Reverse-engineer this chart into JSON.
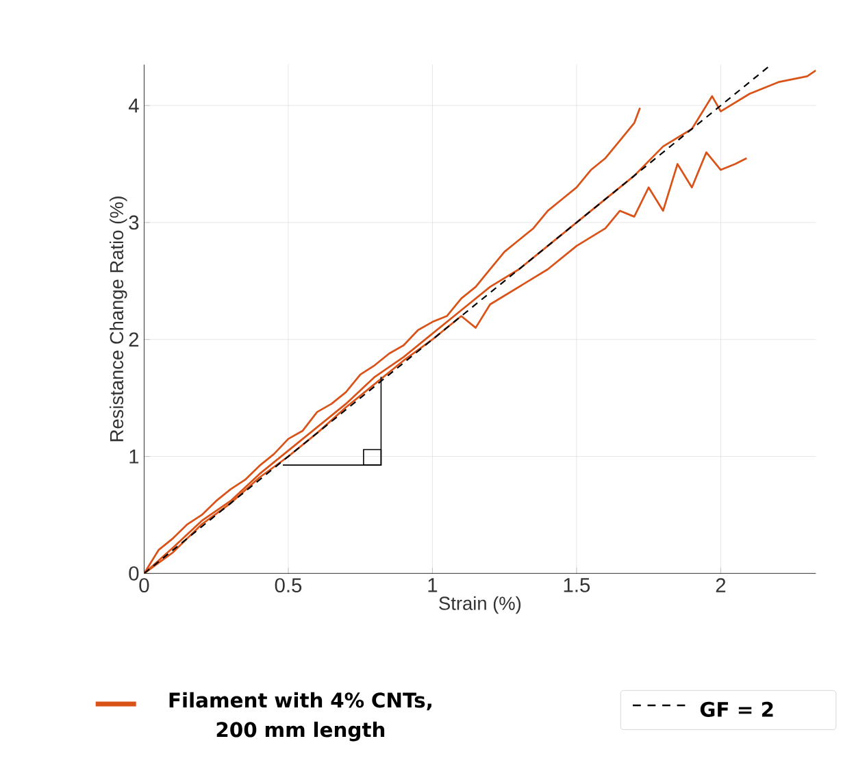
{
  "chart_data": {
    "type": "line",
    "xlabel": "Strain (%)",
    "ylabel": "Resistance Change Ratio (%)",
    "xlim": [
      0,
      2.33
    ],
    "ylim": [
      0,
      4.35
    ],
    "xticks": [
      0,
      0.5,
      1,
      1.5,
      2
    ],
    "yticks": [
      0,
      1,
      2,
      3,
      4
    ],
    "grid": true,
    "legend": "bottom",
    "series": [
      {
        "name": "Filament with 4% CNTs,\n200 mm length",
        "color": "#d95319",
        "x": [
          0,
          0.05,
          0.1,
          0.15,
          0.2,
          0.25,
          0.3,
          0.35,
          0.4,
          0.45,
          0.5,
          0.55,
          0.6,
          0.65,
          0.7,
          0.75,
          0.8,
          0.85,
          0.9,
          0.95,
          1.0,
          1.05,
          1.1,
          1.15,
          1.2,
          1.25,
          1.3,
          1.35,
          1.4,
          1.45,
          1.5,
          1.55,
          1.6,
          1.65,
          1.7,
          1.72
        ],
        "values": [
          0,
          0.2,
          0.3,
          0.42,
          0.5,
          0.62,
          0.72,
          0.8,
          0.92,
          1.02,
          1.15,
          1.22,
          1.38,
          1.45,
          1.55,
          1.7,
          1.78,
          1.88,
          1.95,
          2.08,
          2.15,
          2.2,
          2.35,
          2.45,
          2.6,
          2.75,
          2.85,
          2.95,
          3.1,
          3.2,
          3.3,
          3.45,
          3.55,
          3.7,
          3.85,
          3.98
        ]
      },
      {
        "color": "#d95319",
        "x": [
          0,
          0.1,
          0.2,
          0.3,
          0.4,
          0.5,
          0.6,
          0.7,
          0.8,
          0.9,
          1.0,
          1.1,
          1.2,
          1.3,
          1.4,
          1.5,
          1.6,
          1.7,
          1.8,
          1.9,
          1.97,
          2.0,
          2.1,
          2.2,
          2.3,
          2.33
        ],
        "values": [
          0,
          0.22,
          0.45,
          0.62,
          0.85,
          1.05,
          1.25,
          1.45,
          1.68,
          1.85,
          2.05,
          2.25,
          2.45,
          2.6,
          2.8,
          3.0,
          3.2,
          3.4,
          3.65,
          3.8,
          4.08,
          3.95,
          4.1,
          4.2,
          4.25,
          4.3
        ]
      },
      {
        "color": "#d95319",
        "x": [
          0,
          0.1,
          0.2,
          0.3,
          0.4,
          0.5,
          0.6,
          0.7,
          0.8,
          0.9,
          1.0,
          1.1,
          1.15,
          1.2,
          1.3,
          1.4,
          1.5,
          1.6,
          1.65,
          1.7,
          1.75,
          1.8,
          1.85,
          1.9,
          1.95,
          2.0,
          2.05,
          2.09
        ],
        "values": [
          0,
          0.18,
          0.42,
          0.6,
          0.82,
          1.0,
          1.2,
          1.42,
          1.62,
          1.82,
          2.0,
          2.2,
          2.1,
          2.3,
          2.45,
          2.6,
          2.8,
          2.95,
          3.1,
          3.05,
          3.3,
          3.1,
          3.5,
          3.3,
          3.6,
          3.45,
          3.5,
          3.55
        ]
      },
      {
        "name": "GF = 2",
        "type": "line",
        "line_style": "dashed",
        "color": "#000000",
        "x": [
          0,
          2.17
        ],
        "values": [
          0,
          4.34
        ]
      }
    ]
  }
}
